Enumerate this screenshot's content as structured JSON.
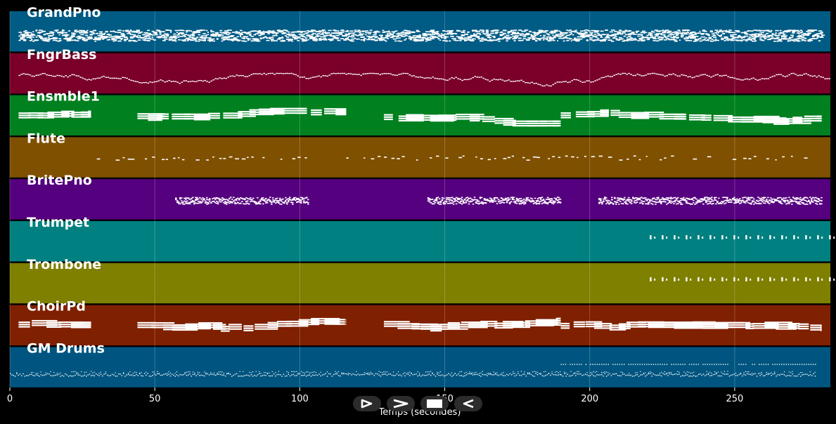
{
  "axis": {
    "xlabel": "Temps (secondes)",
    "xlim": [
      0,
      283
    ],
    "ticks": [
      0,
      50,
      100,
      150,
      200,
      250
    ]
  },
  "colors": {
    "background": "#000000",
    "grid": "#ffffff",
    "note": "#ffffff"
  },
  "tracks": [
    {
      "name": "GrandPno",
      "color": "#005b85",
      "segments": [
        [
          3,
          280
        ]
      ],
      "style": "dense-chords"
    },
    {
      "name": "FngrBass",
      "color": "#7a002a",
      "segments": [
        [
          3,
          283
        ]
      ],
      "style": "bass"
    },
    {
      "name": "Ensmble1",
      "color": "#00801f",
      "segments": [
        [
          3,
          28
        ],
        [
          44,
          116
        ],
        [
          129,
          190
        ],
        [
          190,
          280
        ]
      ],
      "style": "pad"
    },
    {
      "name": "Flute",
      "color": "#7f5000",
      "segments": [
        [
          28,
          102
        ],
        [
          116,
          278
        ]
      ],
      "style": "sparse"
    },
    {
      "name": "BritePno",
      "color": "#55007f",
      "segments": [
        [
          57,
          103
        ],
        [
          144,
          190
        ],
        [
          203,
          280
        ]
      ],
      "style": "block"
    },
    {
      "name": "Trumpet",
      "color": "#008080",
      "segments": [
        [
          220,
          283
        ]
      ],
      "style": "stabs"
    },
    {
      "name": "Trombone",
      "color": "#7f7f00",
      "segments": [
        [
          220,
          283
        ]
      ],
      "style": "stabs"
    },
    {
      "name": "ChoirPd",
      "color": "#7f2000",
      "segments": [
        [
          3,
          28
        ],
        [
          44,
          116
        ],
        [
          129,
          190
        ],
        [
          190,
          280
        ]
      ],
      "style": "pad"
    },
    {
      "name": "GM Drums",
      "color": "#005580",
      "segments": [
        [
          0,
          190
        ],
        [
          190,
          278
        ]
      ],
      "style": "drums"
    }
  ],
  "transport": {
    "buttons": [
      "play-icon",
      "fast-forward-icon",
      "stop-icon",
      "rewind-icon"
    ]
  }
}
